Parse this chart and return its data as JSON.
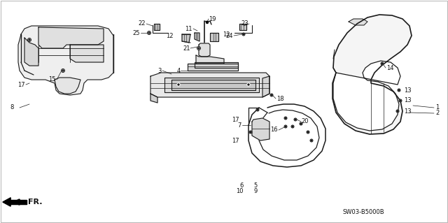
{
  "bg_color": "#ffffff",
  "diagram_code": "SW03-B5000B",
  "line_color": "#1a1a1a",
  "label_color": "#111111",
  "fs": 6.0,
  "border_color": "#aaaaaa"
}
